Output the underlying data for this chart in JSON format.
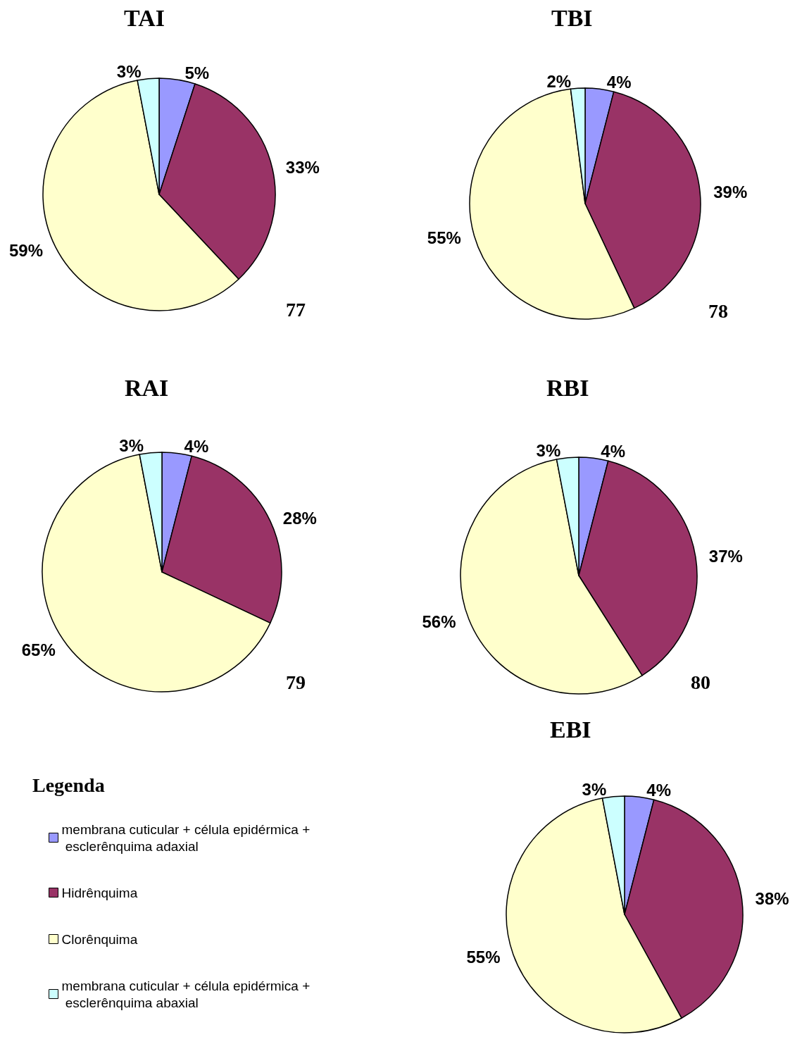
{
  "chart_data": [
    {
      "type": "pie",
      "title": "TAI",
      "categories": [
        null,
        null,
        null,
        null
      ],
      "values": [
        5,
        33,
        59,
        3
      ],
      "value_labels": [
        "5%",
        "33%",
        "59%",
        "3%"
      ],
      "colors": [
        "#9999ff",
        "#993366",
        "#ffffcc",
        "#ccffff"
      ],
      "legend": false,
      "annotations": [
        "77"
      ]
    },
    {
      "type": "pie",
      "title": "TBI",
      "categories": [
        null,
        null,
        null,
        null
      ],
      "values": [
        4,
        39,
        55,
        2
      ],
      "value_labels": [
        "4%",
        "39%",
        "55%",
        "2%"
      ],
      "colors": [
        "#9999ff",
        "#993366",
        "#ffffcc",
        "#ccffff"
      ],
      "legend": false,
      "annotations": [
        "78"
      ]
    },
    {
      "type": "pie",
      "title": "RAI",
      "categories": [
        null,
        null,
        null,
        null
      ],
      "values": [
        4,
        28,
        65,
        3
      ],
      "value_labels": [
        "4%",
        "28%",
        "65%",
        "3%"
      ],
      "colors": [
        "#9999ff",
        "#993366",
        "#ffffcc",
        "#ccffff"
      ],
      "legend": false,
      "annotations": [
        "79"
      ]
    },
    {
      "type": "pie",
      "title": "RBI",
      "categories": [
        null,
        null,
        null,
        null
      ],
      "values": [
        4,
        37,
        56,
        3
      ],
      "value_labels": [
        "4%",
        "37%",
        "56%",
        "3%"
      ],
      "colors": [
        "#9999ff",
        "#993366",
        "#ffffcc",
        "#ccffff"
      ],
      "legend": false,
      "annotations": [
        "80"
      ]
    },
    {
      "type": "pie",
      "title": "EBI",
      "categories": [
        "membrana cuticular + célula epidérmica + esclerênquima adaxial",
        "Hidrênquima",
        "Clorênquima",
        "membrana cuticular + célula epidérmica + esclerênquima abaxial"
      ],
      "values": [
        4,
        38,
        55,
        3
      ],
      "value_labels": [
        "4%",
        "38%",
        "55%",
        "3%"
      ],
      "colors": [
        "#9999ff",
        "#993366",
        "#ffffcc",
        "#ccffff"
      ],
      "legend": "left",
      "legend_title": "Legenda"
    }
  ]
}
